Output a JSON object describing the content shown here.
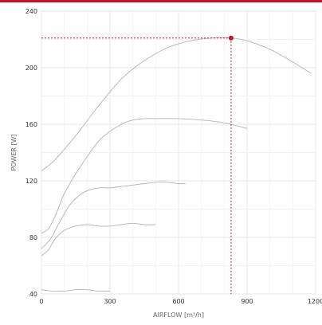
{
  "theme": {
    "accent": "#c8102e",
    "curve": "#b3b3b3"
  },
  "chart_data": {
    "type": "line",
    "title": "",
    "xlabel": "AIRFLOW [m³/h]",
    "ylabel": "POWER [W]",
    "xlim": [
      0,
      1200
    ],
    "ylim": [
      40,
      240
    ],
    "xticks": [
      0,
      300,
      600,
      900,
      1200
    ],
    "xtick_labels": [
      "0",
      "300",
      "600",
      "900",
      "1200"
    ],
    "yticks": [
      40,
      80,
      120,
      160,
      200,
      240
    ],
    "ytick_labels": [
      "40",
      "80",
      "120",
      "160",
      "200",
      "240"
    ],
    "grid": true,
    "series": [
      {
        "x": [
          0,
          60,
          150,
          250,
          350,
          450,
          550,
          650,
          750,
          830,
          900,
          1000,
          1100,
          1180
        ],
        "y": [
          127,
          135,
          152,
          173,
          192,
          205,
          214,
          219,
          221,
          221,
          219,
          213,
          204,
          196
        ]
      },
      {
        "x": [
          0,
          30,
          60,
          100,
          150,
          200,
          250,
          300,
          350,
          400,
          450,
          500,
          600,
          700,
          800,
          900
        ],
        "y": [
          83,
          86,
          95,
          111,
          125,
          137,
          148,
          155,
          160,
          163,
          164,
          164,
          164,
          163,
          161,
          157
        ]
      },
      {
        "x": [
          0,
          40,
          80,
          120,
          160,
          200,
          250,
          300,
          350,
          400,
          450,
          500,
          550,
          600,
          630
        ],
        "y": [
          72,
          79,
          91,
          102,
          109,
          113,
          115,
          115,
          116,
          117,
          118,
          119,
          119,
          118,
          118
        ]
      },
      {
        "x": [
          0,
          30,
          60,
          100,
          150,
          200,
          250,
          300,
          350,
          400,
          450,
          500
        ],
        "y": [
          67,
          71,
          79,
          85,
          88,
          89,
          88,
          88,
          89,
          90,
          89,
          89
        ]
      },
      {
        "x": [
          0,
          50,
          100,
          150,
          200,
          250,
          300
        ],
        "y": [
          43,
          42,
          42,
          43,
          43,
          42,
          42
        ]
      }
    ],
    "operating_point": {
      "x": 830,
      "y": 221
    }
  }
}
